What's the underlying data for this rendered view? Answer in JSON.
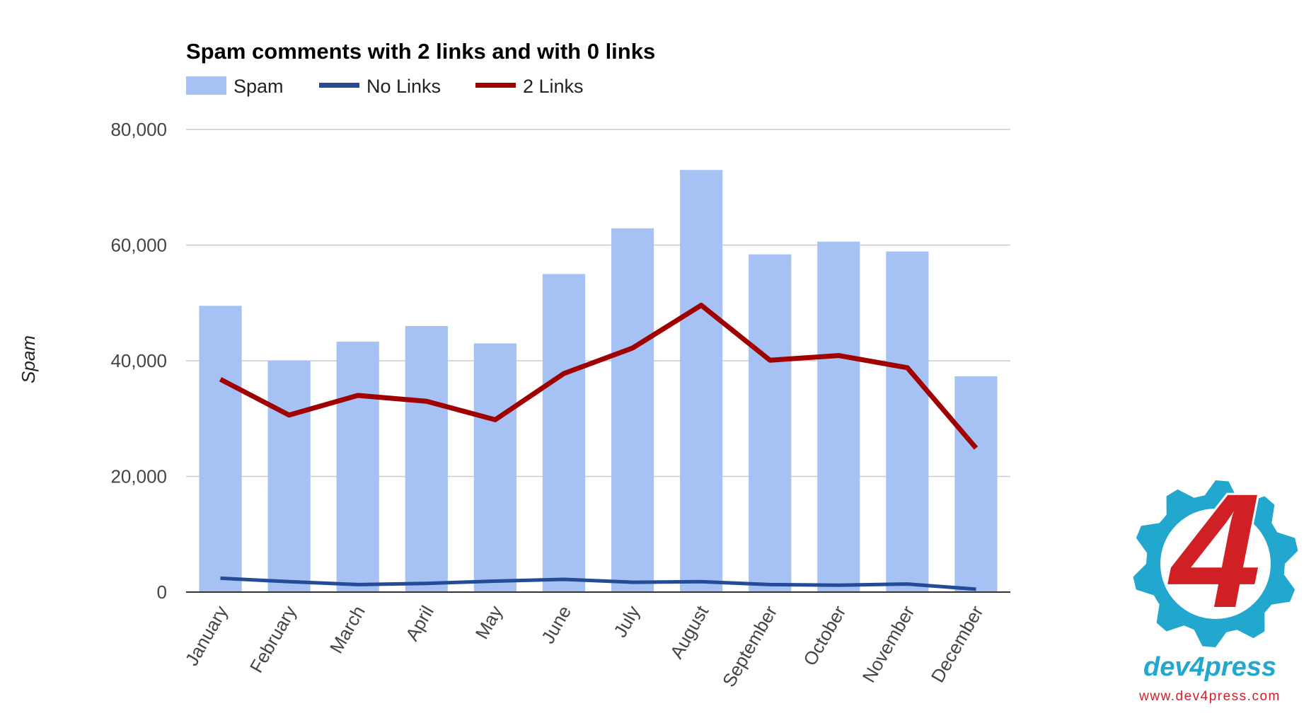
{
  "chart_data": {
    "type": "bar",
    "title": "Spam comments with 2 links and with 0 links",
    "ylabel": "Spam",
    "xlabel": "",
    "categories": [
      "January",
      "February",
      "March",
      "April",
      "May",
      "June",
      "July",
      "August",
      "September",
      "October",
      "November",
      "December"
    ],
    "series": [
      {
        "name": "Spam",
        "type": "bar",
        "color": "#a6c2f4",
        "values": [
          49500,
          40000,
          43300,
          46000,
          43000,
          55000,
          62900,
          73000,
          58400,
          60600,
          58900,
          37300
        ]
      },
      {
        "name": "No Links",
        "type": "line",
        "color": "#234b96",
        "values": [
          2400,
          1800,
          1300,
          1500,
          1900,
          2200,
          1700,
          1800,
          1300,
          1200,
          1400,
          500
        ]
      },
      {
        "name": "2 Links",
        "type": "line",
        "color": "#a00000",
        "values": [
          36800,
          30600,
          34000,
          33000,
          29800,
          37800,
          42200,
          49600,
          40100,
          40900,
          38800,
          24900
        ]
      }
    ],
    "ylim": [
      0,
      80000
    ],
    "yticks": [
      0,
      20000,
      40000,
      60000,
      80000
    ],
    "ytick_labels": [
      "0",
      "20,000",
      "40,000",
      "60,000",
      "80,000"
    ],
    "grid": true,
    "legend_position": "top-left"
  },
  "watermark": {
    "logo_glyph": "4",
    "brand": "dev4press",
    "url": "www.dev4press.com",
    "gear_color": "#22a7cf",
    "four_color": "#d11f26",
    "url_color": "#d11f26"
  }
}
